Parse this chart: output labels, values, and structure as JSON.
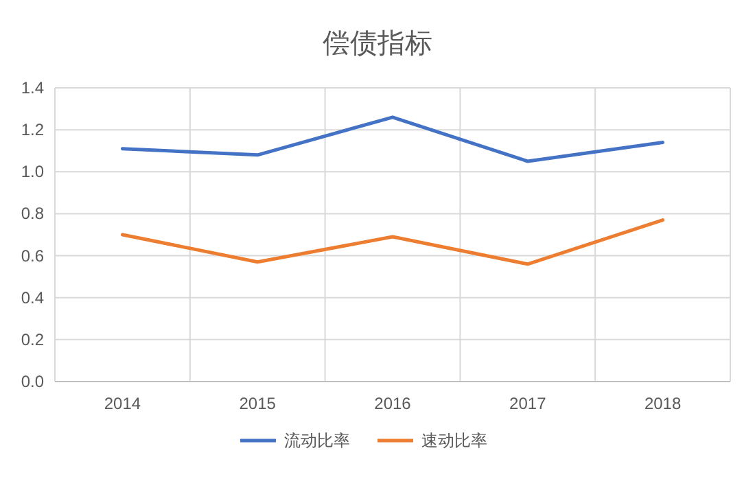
{
  "chart_data": {
    "type": "line",
    "title": "偿债指标",
    "categories": [
      "2014",
      "2015",
      "2016",
      "2017",
      "2018"
    ],
    "series": [
      {
        "name": "流动比率",
        "color": "#4472c4",
        "values": [
          1.11,
          1.08,
          1.26,
          1.05,
          1.14
        ]
      },
      {
        "name": "速动比率",
        "color": "#ed7d31",
        "values": [
          0.7,
          0.57,
          0.69,
          0.56,
          0.77
        ]
      }
    ],
    "ylim": [
      0,
      1.4
    ],
    "yticks": [
      {
        "value": 0,
        "label": "0.0"
      },
      {
        "value": 0.2,
        "label": "0.2"
      },
      {
        "value": 0.4,
        "label": "0.4"
      },
      {
        "value": 0.6,
        "label": "0.6"
      },
      {
        "value": 0.8,
        "label": "0.8"
      },
      {
        "value": 1,
        "label": "1.0"
      },
      {
        "value": 1.2,
        "label": "1.2"
      },
      {
        "value": 1.4,
        "label": "1.4"
      }
    ],
    "grid": true,
    "legend": "bottom",
    "marker": "none",
    "line_style": "solid"
  }
}
